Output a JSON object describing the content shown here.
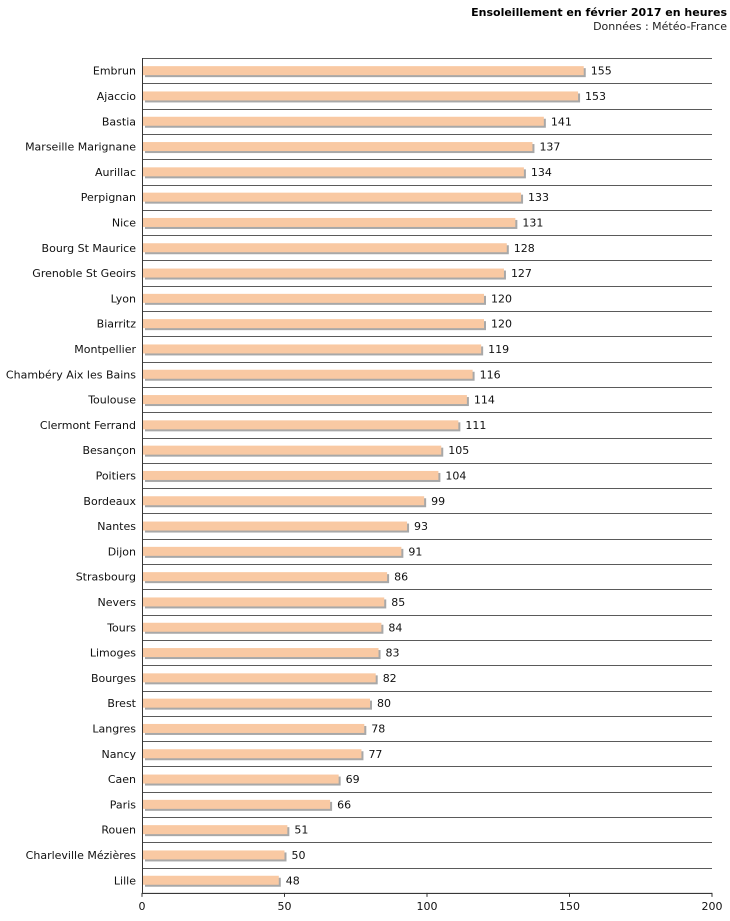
{
  "chart_data": {
    "type": "bar",
    "orientation": "horizontal",
    "title": "Ensoleillement en février 2017 en heures",
    "subtitle": "Données : Météo-France",
    "categories": [
      "Embrun",
      "Ajaccio",
      "Bastia",
      "Marseille Marignane",
      "Aurillac",
      "Perpignan",
      "Nice",
      "Bourg St Maurice",
      "Grenoble St Geoirs",
      "Lyon",
      "Biarritz",
      "Montpellier",
      "Chambéry Aix les Bains",
      "Toulouse",
      "Clermont Ferrand",
      "Besançon",
      "Poitiers",
      "Bordeaux",
      "Nantes",
      "Dijon",
      "Strasbourg",
      "Nevers",
      "Tours",
      "Limoges",
      "Bourges",
      "Brest",
      "Langres",
      "Nancy",
      "Caen",
      "Paris",
      "Rouen",
      "Charleville Mézières",
      "Lille"
    ],
    "values": [
      155,
      153,
      141,
      137,
      134,
      133,
      131,
      128,
      127,
      120,
      120,
      119,
      116,
      114,
      111,
      105,
      104,
      99,
      93,
      91,
      86,
      85,
      84,
      83,
      82,
      80,
      78,
      77,
      69,
      66,
      51,
      50,
      48
    ],
    "xlim": [
      0,
      200
    ],
    "xticks": [
      "0",
      "50",
      "100",
      "150",
      "200"
    ],
    "grid": true,
    "colors": {
      "bar": "#f9c9a3",
      "bar_shadow": "#a8a8a8",
      "grid": "#5a5a5a",
      "axis": "#333333"
    }
  }
}
